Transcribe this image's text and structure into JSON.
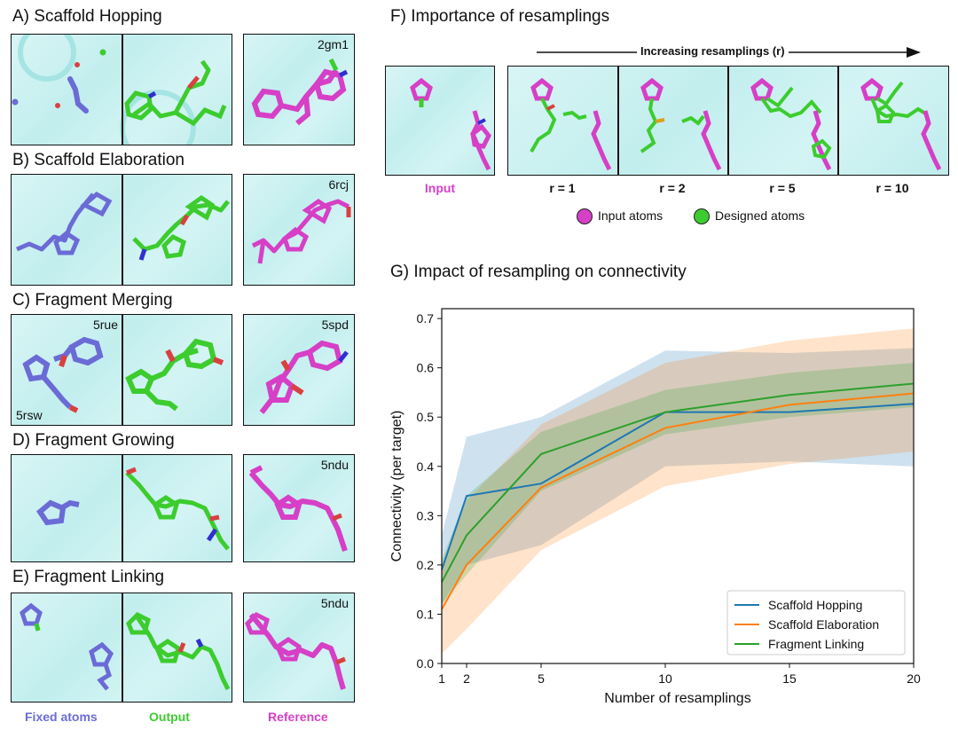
{
  "panels": {
    "a": {
      "title": "A) Scaffold Hopping",
      "pdb": "2gm1"
    },
    "b": {
      "title": "B) Scaffold Elaboration",
      "pdb": "6rcj"
    },
    "c": {
      "title": "C) Fragment Merging",
      "pdb_input_top": "5rue",
      "pdb_input_bottom": "5rsw",
      "pdb": "5spd"
    },
    "d": {
      "title": "D) Fragment Growing",
      "pdb": "5ndu"
    },
    "e": {
      "title": "E) Fragment Linking",
      "pdb": "5ndu"
    }
  },
  "footer": {
    "fixed": "Fixed atoms",
    "output": "Output",
    "reference": "Reference"
  },
  "panel_f": {
    "title": "F) Importance of resamplings",
    "arrow_label": "Increasing resamplings (r)",
    "input_label": "Input",
    "r_labels": [
      "r = 1",
      "r = 2",
      "r = 5",
      "r = 10"
    ],
    "legend_input": "Input atoms",
    "legend_designed": "Designed atoms"
  },
  "panel_g": {
    "title": "G) Impact of resampling on connectivity"
  },
  "colors": {
    "fixed": "#6b6bd6",
    "output": "#3ccc2e",
    "reference": "#d63fc6",
    "protein": "#bfeeee"
  },
  "chart_data": {
    "type": "line",
    "xlabel": "Number of resamplings",
    "ylabel": "Connectivity (per target)",
    "xlim": [
      1,
      20
    ],
    "ylim": [
      0.0,
      0.72
    ],
    "xticks": [
      1,
      2,
      5,
      10,
      15,
      20
    ],
    "yticks": [
      0.0,
      0.1,
      0.2,
      0.3,
      0.4,
      0.5,
      0.6,
      0.7
    ],
    "x": [
      1,
      2,
      5,
      10,
      15,
      20
    ],
    "legend_position": "lower-right",
    "series": [
      {
        "name": "Scaffold Hopping",
        "color": "#1f77b4",
        "values": [
          0.19,
          0.34,
          0.365,
          0.51,
          0.51,
          0.527
        ],
        "lower": [
          0.12,
          0.2,
          0.24,
          0.4,
          0.41,
          0.4
        ],
        "upper": [
          0.26,
          0.46,
          0.5,
          0.635,
          0.63,
          0.64
        ]
      },
      {
        "name": "Scaffold Elaboration",
        "color": "#ff7f0e",
        "values": [
          0.11,
          0.2,
          0.357,
          0.478,
          0.525,
          0.548
        ],
        "lower": [
          0.02,
          0.07,
          0.23,
          0.36,
          0.405,
          0.43
        ],
        "upper": [
          0.2,
          0.33,
          0.485,
          0.61,
          0.655,
          0.68
        ]
      },
      {
        "name": "Fragment Linking",
        "color": "#2ca02c",
        "values": [
          0.165,
          0.26,
          0.425,
          0.51,
          0.545,
          0.568
        ],
        "lower": [
          0.12,
          0.18,
          0.35,
          0.465,
          0.5,
          0.52
        ],
        "upper": [
          0.21,
          0.34,
          0.47,
          0.555,
          0.59,
          0.61
        ]
      }
    ]
  }
}
